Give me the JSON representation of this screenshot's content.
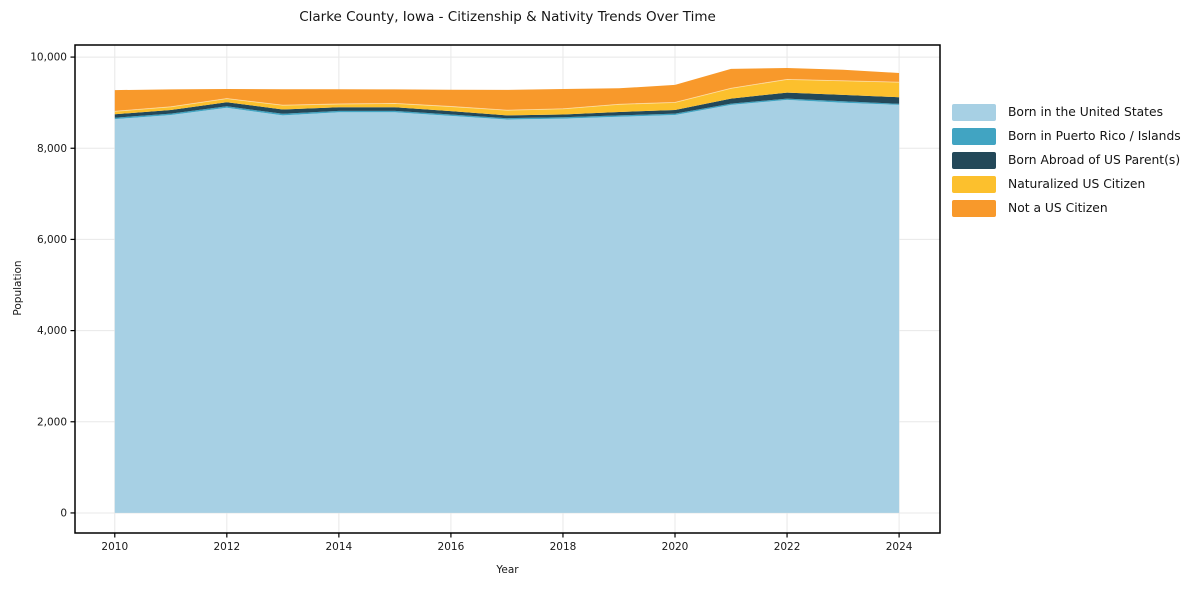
{
  "chart_data": {
    "type": "area",
    "stacked": true,
    "title": "Clarke County, Iowa - Citizenship & Nativity Trends Over Time",
    "xlabel": "Year",
    "ylabel": "Population",
    "x": [
      2010,
      2011,
      2012,
      2013,
      2014,
      2015,
      2016,
      2017,
      2018,
      2019,
      2020,
      2021,
      2022,
      2023,
      2024
    ],
    "series": [
      {
        "name": "Born in the United States",
        "color": "#A7D0E4",
        "values": [
          8640,
          8730,
          8890,
          8720,
          8790,
          8790,
          8710,
          8630,
          8650,
          8690,
          8730,
          8950,
          9060,
          9000,
          8950
        ]
      },
      {
        "name": "Born in Puerto Rico / Islands",
        "color": "#41A4C2",
        "values": [
          30,
          30,
          30,
          35,
          30,
          30,
          30,
          30,
          30,
          30,
          30,
          30,
          30,
          30,
          25
        ]
      },
      {
        "name": "Born Abroad of US Parent(s)",
        "color": "#234859",
        "values": [
          75,
          80,
          90,
          95,
          80,
          80,
          75,
          60,
          60,
          75,
          80,
          110,
          130,
          140,
          145
        ]
      },
      {
        "name": "Naturalized US Citizen",
        "color": "#FCC02D",
        "values": [
          65,
          70,
          80,
          95,
          70,
          85,
          100,
          115,
          125,
          170,
          165,
          225,
          290,
          310,
          330
        ]
      },
      {
        "name": "Not a US Citizen",
        "color": "#F8992B",
        "values": [
          465,
          380,
          210,
          350,
          325,
          305,
          370,
          445,
          435,
          350,
          385,
          425,
          250,
          240,
          200
        ]
      }
    ],
    "xticks": [
      2010,
      2012,
      2014,
      2016,
      2018,
      2020,
      2022,
      2024
    ],
    "xtick_labels": [
      "2010",
      "2012",
      "2014",
      "2016",
      "2018",
      "2020",
      "2022",
      "2024"
    ],
    "yticks": [
      0,
      2000,
      4000,
      6000,
      8000,
      10000
    ],
    "ytick_labels": [
      "0",
      "2,000",
      "4,000",
      "6,000",
      "8,000",
      "10,000"
    ],
    "xlim": [
      2009.29,
      2024.73
    ],
    "ylim": [
      -440,
      10265
    ],
    "grid": true,
    "legend_position": "right"
  },
  "colors": {
    "gridline": "#e8e8e8",
    "spine": "#000000",
    "background": "#ffffff"
  }
}
